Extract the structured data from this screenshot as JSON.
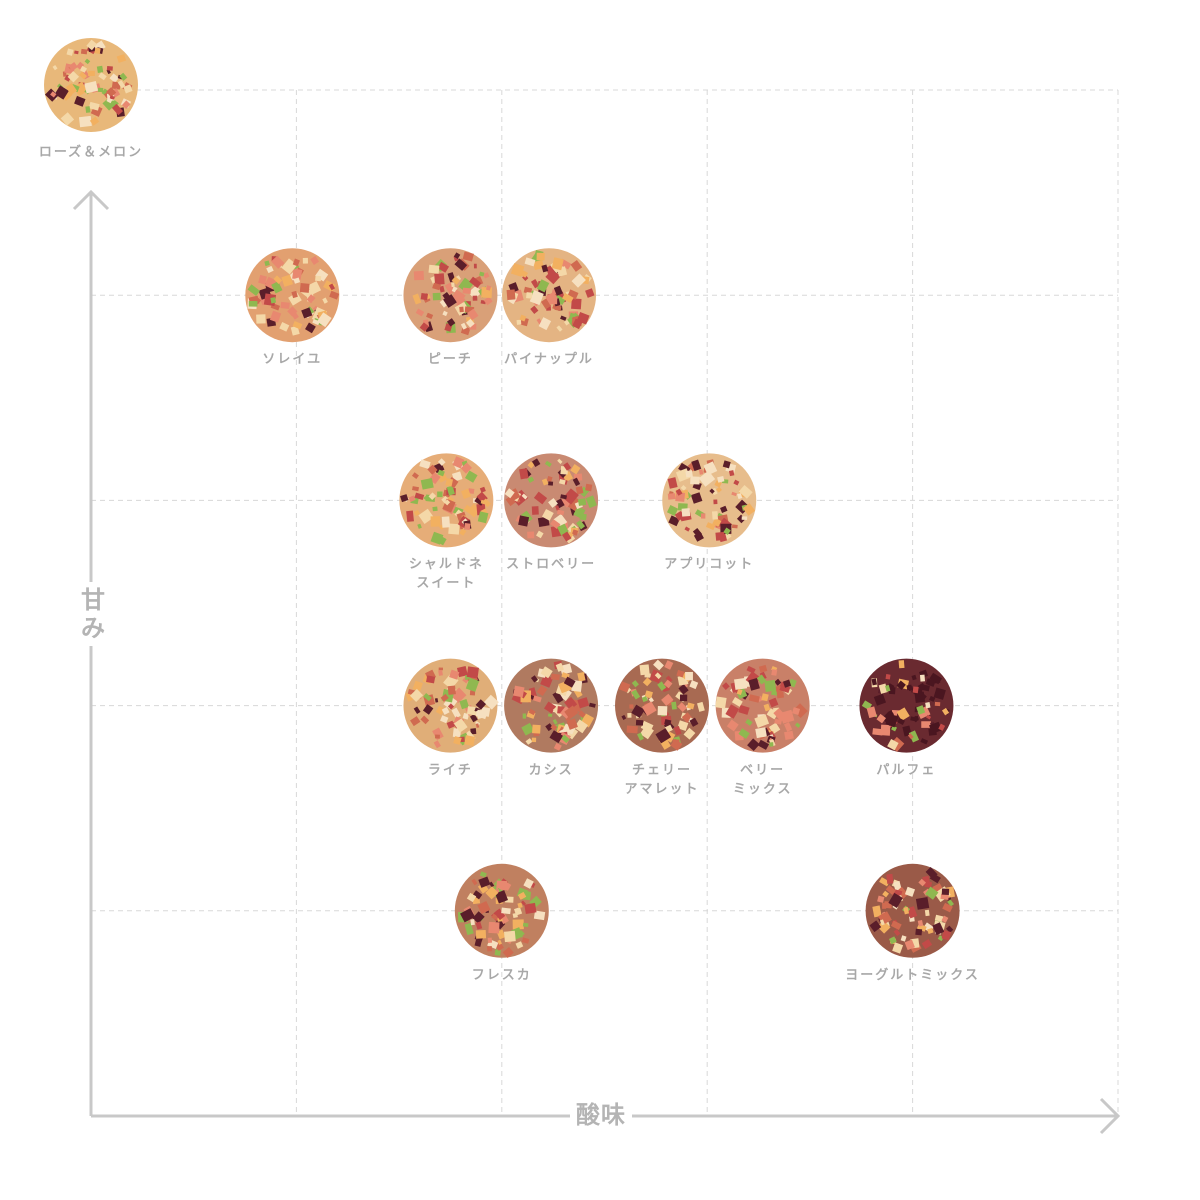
{
  "chart_data": {
    "type": "scatter",
    "title": "",
    "xlabel": "酸味",
    "ylabel": "甘み",
    "xlim": [
      0,
      5
    ],
    "ylim": [
      0,
      5
    ],
    "grid": true,
    "axis_colors": {
      "axis": "#c8c8c8",
      "grid": "#d8d8d8",
      "label": "#a8a8a8"
    },
    "points": [
      {
        "name": "ローズ＆メロン",
        "x": 0.0,
        "y": 5.0,
        "color": "#e8b87a"
      },
      {
        "name": "ソレイユ",
        "x": 0.98,
        "y": 4.0,
        "color": "#e2a070"
      },
      {
        "name": "ピーチ",
        "x": 1.75,
        "y": 4.0,
        "color": "#d9a078"
      },
      {
        "name": "パイナップル",
        "x": 2.23,
        "y": 4.0,
        "color": "#e4b483"
      },
      {
        "name": "シャルドネ\nスイート",
        "x": 1.73,
        "y": 3.0,
        "color": "#e6ad78"
      },
      {
        "name": "ストロベリー",
        "x": 2.24,
        "y": 3.0,
        "color": "#c98a72"
      },
      {
        "name": "アプリコット",
        "x": 3.01,
        "y": 3.0,
        "color": "#e7bd8c"
      },
      {
        "name": "ライチ",
        "x": 1.75,
        "y": 2.0,
        "color": "#e0ae78"
      },
      {
        "name": "カシス",
        "x": 2.24,
        "y": 2.0,
        "color": "#b07a60"
      },
      {
        "name": "チェリー\nアマレット",
        "x": 2.78,
        "y": 2.0,
        "color": "#a86a52"
      },
      {
        "name": "ベリー\nミックス",
        "x": 3.27,
        "y": 2.0,
        "color": "#c98068"
      },
      {
        "name": "パルフェ",
        "x": 3.97,
        "y": 2.0,
        "color": "#6a2a30"
      },
      {
        "name": "フレスカ",
        "x": 2.0,
        "y": 1.0,
        "color": "#c08060"
      },
      {
        "name": "ヨーグルトミックス",
        "x": 4.0,
        "y": 1.0,
        "color": "#9a5a48"
      }
    ]
  }
}
